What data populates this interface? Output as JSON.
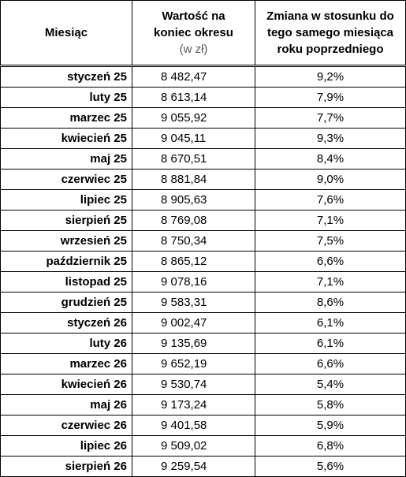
{
  "header": {
    "month": "Miesiąc",
    "value": [
      "Wartość na",
      "koniec okresu"
    ],
    "value_unit": "(w zł)",
    "change": [
      "Zmiana w stosunku do",
      "tego samego miesiąca",
      "roku poprzedniego"
    ]
  },
  "table": {
    "rows": [
      [
        "styczeń 25",
        "8 482,47",
        "9,2%"
      ],
      [
        "luty 25",
        "8 613,14",
        "7,9%"
      ],
      [
        "marzec 25",
        "9 055,92",
        "7,7%"
      ],
      [
        "kwiecień 25",
        "9 045,11",
        "9,3%"
      ],
      [
        "maj 25",
        "8 670,51",
        "8,4%"
      ],
      [
        "czerwiec 25",
        "8 881,84",
        "9,0%"
      ],
      [
        "lipiec 25",
        "8 905,63",
        "7,6%"
      ],
      [
        "sierpień 25",
        "8 769,08",
        "7,1%"
      ],
      [
        "wrzesień 25",
        "8 750,34",
        "7,5%"
      ],
      [
        "październik 25",
        "8 865,12",
        "6,6%"
      ],
      [
        "listopad 25",
        "9 078,16",
        "7,1%"
      ],
      [
        "grudzień 25",
        "9 583,31",
        "8,6%"
      ],
      [
        "styczeń 26",
        "9 002,47",
        "6,1%"
      ],
      [
        "luty 26",
        "9 135,69",
        "6,1%"
      ],
      [
        "marzec 26",
        "9 652,19",
        "6,6%"
      ],
      [
        "kwiecień 26",
        "9 530,74",
        "5,4%"
      ],
      [
        "maj 26",
        "9 173,24",
        "5,8%"
      ],
      [
        "czerwiec 26",
        "9 401,58",
        "5,9%"
      ],
      [
        "lipiec 26",
        "9 509,02",
        "6,8%"
      ],
      [
        "sierpień 26",
        "9 259,54",
        "5,6%"
      ]
    ]
  }
}
